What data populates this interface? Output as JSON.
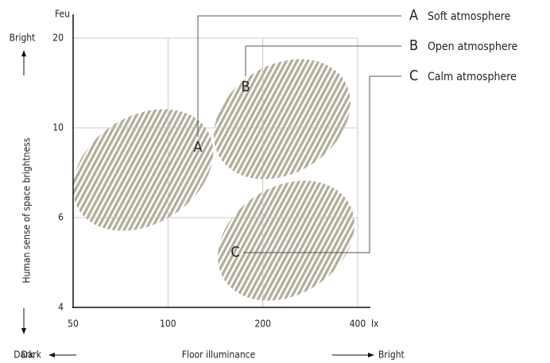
{
  "chart_data": {
    "type": "region",
    "y_axis_unit": "Feu",
    "x_axis_unit": "lx",
    "ylabel": "Human sense of space brightness",
    "xlabel": "Floor illuminance",
    "y_top_label": "Bright",
    "y_bottom_label": "Dark",
    "x_left_label": "Dark",
    "x_right_label": "Bright",
    "xscale": "log",
    "xlim": [
      50,
      400
    ],
    "xticks": [
      50,
      100,
      200,
      400
    ],
    "ylim": [
      4,
      20
    ],
    "yticks": [
      4,
      6,
      10,
      20
    ],
    "grid": true,
    "color": "#b3af9c",
    "regions": [
      {
        "letter": "A",
        "name": "Soft atmosphere"
      },
      {
        "letter": "B",
        "name": "Open atmosphere"
      },
      {
        "letter": "C",
        "name": "Calm atmosphere"
      }
    ]
  }
}
